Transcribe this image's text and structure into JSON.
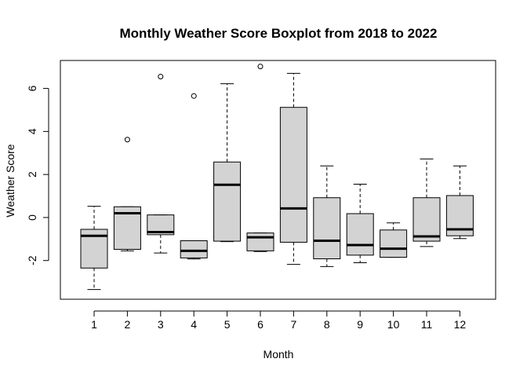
{
  "chart_data": {
    "type": "boxplot",
    "title": "Monthly Weather Score Boxplot from 2018 to 2022",
    "xlabel": "Month",
    "ylabel": "Weather Score",
    "ylim": [
      -3.8,
      7.3
    ],
    "yticks": [
      -2,
      0,
      2,
      4,
      6
    ],
    "grid": false,
    "legend": "none",
    "box_fill": "#d3d3d3",
    "categories": [
      "1",
      "2",
      "3",
      "4",
      "5",
      "6",
      "7",
      "8",
      "9",
      "10",
      "11",
      "12"
    ],
    "boxes": [
      {
        "month": "1",
        "min": -3.35,
        "q1": -2.35,
        "median": -0.85,
        "q3": -0.55,
        "max": 0.52,
        "outliers": []
      },
      {
        "month": "2",
        "min": -1.55,
        "q1": -1.48,
        "median": 0.2,
        "q3": 0.5,
        "max": 0.5,
        "outliers": [
          3.62
        ]
      },
      {
        "month": "3",
        "min": -1.65,
        "q1": -0.8,
        "median": -0.68,
        "q3": 0.12,
        "max": 0.12,
        "outliers": [
          6.55
        ]
      },
      {
        "month": "4",
        "min": -1.93,
        "q1": -1.88,
        "median": -1.55,
        "q3": -1.08,
        "max": -1.08,
        "outliers": [
          5.65
        ]
      },
      {
        "month": "5",
        "min": -1.12,
        "q1": -1.1,
        "median": 1.52,
        "q3": 2.58,
        "max": 6.22,
        "outliers": []
      },
      {
        "month": "6",
        "min": -1.58,
        "q1": -1.55,
        "median": -0.92,
        "q3": -0.72,
        "max": -0.72,
        "outliers": [
          7.02
        ]
      },
      {
        "month": "7",
        "min": -2.18,
        "q1": -1.15,
        "median": 0.42,
        "q3": 5.12,
        "max": 6.7,
        "outliers": []
      },
      {
        "month": "8",
        "min": -2.28,
        "q1": -1.92,
        "median": -1.08,
        "q3": 0.92,
        "max": 2.4,
        "outliers": []
      },
      {
        "month": "9",
        "min": -2.1,
        "q1": -1.75,
        "median": -1.28,
        "q3": 0.18,
        "max": 1.55,
        "outliers": []
      },
      {
        "month": "10",
        "min": -1.85,
        "q1": -1.85,
        "median": -1.45,
        "q3": -0.58,
        "max": -0.25,
        "outliers": []
      },
      {
        "month": "11",
        "min": -1.35,
        "q1": -1.1,
        "median": -0.88,
        "q3": 0.92,
        "max": 2.72,
        "outliers": []
      },
      {
        "month": "12",
        "min": -0.98,
        "q1": -0.85,
        "median": -0.55,
        "q3": 1.02,
        "max": 2.4,
        "outliers": []
      }
    ]
  }
}
